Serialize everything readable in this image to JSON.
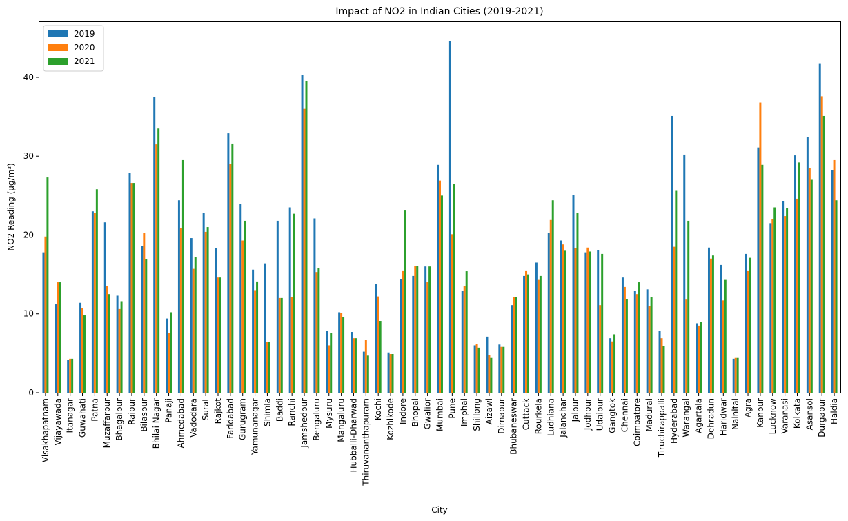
{
  "chart_data": {
    "type": "bar",
    "title": "Impact of NO2 in Indian Cities (2019-2021)",
    "xlabel": "City",
    "ylabel": "NO2 Reading (μg/m³)",
    "ylim": [
      0,
      47
    ],
    "yticks": [
      0,
      10,
      20,
      30,
      40
    ],
    "grid": false,
    "legend_position": "top-left",
    "categories": [
      "Visakhapatnam",
      "Vijayawada",
      "Itanagar",
      "Guwahati",
      "Patna",
      "Muzaffarpur",
      "Bhagalpur",
      "Raipur",
      "Bilaspur",
      "Bhilai Nagar",
      "Panaji",
      "Ahmedabad",
      "Vadodara",
      "Surat",
      "Rajkot",
      "Faridabad",
      "Gurugram",
      "Yamunanagar",
      "Shimla",
      "Baddi",
      "Ranchi",
      "Jamshedpur",
      "Bengaluru",
      "Mysuru",
      "Mangaluru",
      "Hubballi-Dharwad",
      "Thiruvananthapuram",
      "Kochi",
      "Kozhikode",
      "Indore",
      "Bhopal",
      "Gwalior",
      "Mumbai",
      "Pune",
      "Imphal",
      "Shillong",
      "Aizawl",
      "Dimapur",
      "Bhubaneswar",
      "Cuttack",
      "Rourkela",
      "Ludhiana",
      "Jalandhar",
      "Jaipur",
      "Jodhpur",
      "Udaipur",
      "Gangtok",
      "Chennai",
      "Coimbatore",
      "Madurai",
      "Tiruchirappalli",
      "Hyderabad",
      "Warangal",
      "Agartala",
      "Dehradun",
      "Haridwar",
      "Nainital",
      "Agra",
      "Kanpur",
      "Lucknow",
      "Varanasi",
      "Kolkata",
      "Asansol",
      "Durgapur",
      "Haldia"
    ],
    "series": [
      {
        "name": "2019",
        "color": "#1f77b4",
        "values": [
          17.8,
          11.2,
          4.2,
          11.4,
          23.0,
          21.6,
          12.3,
          27.9,
          18.6,
          37.5,
          9.4,
          24.4,
          19.6,
          22.8,
          18.3,
          32.9,
          23.9,
          15.6,
          16.4,
          21.8,
          23.5,
          40.3,
          22.1,
          7.8,
          10.2,
          7.7,
          5.2,
          13.8,
          5.1,
          14.4,
          14.8,
          16.0,
          28.9,
          44.6,
          12.9,
          6.0,
          7.1,
          6.1,
          11.1,
          14.8,
          16.5,
          20.3,
          19.3,
          25.1,
          17.8,
          18.1,
          6.9,
          14.6,
          12.9,
          13.1,
          7.8,
          35.1,
          30.2,
          8.8,
          18.4,
          16.2,
          4.3,
          17.6,
          31.1,
          21.5,
          24.3,
          30.1,
          32.4,
          41.7,
          28.2
        ]
      },
      {
        "name": "2020",
        "color": "#ff7f0e",
        "values": [
          19.8,
          14.0,
          4.3,
          10.7,
          22.8,
          13.5,
          10.6,
          26.6,
          20.3,
          31.5,
          7.6,
          20.9,
          15.7,
          20.4,
          14.6,
          29.0,
          19.3,
          13.0,
          6.4,
          12.0,
          12.1,
          36.0,
          15.3,
          6.0,
          10.1,
          6.9,
          6.7,
          12.2,
          4.9,
          15.5,
          16.1,
          14.0,
          26.9,
          20.1,
          13.5,
          6.2,
          4.8,
          5.8,
          12.1,
          15.5,
          14.3,
          21.9,
          18.8,
          18.3,
          18.4,
          11.1,
          6.5,
          13.4,
          12.5,
          11.0,
          6.9,
          18.5,
          11.8,
          8.5,
          17.0,
          11.7,
          4.4,
          15.5,
          36.8,
          22.0,
          22.4,
          24.6,
          28.5,
          37.6,
          29.5
        ]
      },
      {
        "name": "2021",
        "color": "#2ca02c",
        "values": [
          27.3,
          14.0,
          4.3,
          9.8,
          25.8,
          12.5,
          11.6,
          26.6,
          16.9,
          33.5,
          10.2,
          29.5,
          17.2,
          21.0,
          14.6,
          31.6,
          21.8,
          14.1,
          6.4,
          12.0,
          22.7,
          39.5,
          15.8,
          7.6,
          9.6,
          6.9,
          4.7,
          9.1,
          4.9,
          23.1,
          16.1,
          16.0,
          25.0,
          26.5,
          15.4,
          5.7,
          4.4,
          5.8,
          12.1,
          15.0,
          14.8,
          24.4,
          18.0,
          22.8,
          17.9,
          17.6,
          7.4,
          11.9,
          14.0,
          12.1,
          5.9,
          25.6,
          21.8,
          9.0,
          17.4,
          14.3,
          4.4,
          17.1,
          28.9,
          23.5,
          23.4,
          29.2,
          27.0,
          35.1,
          24.4
        ]
      }
    ]
  }
}
